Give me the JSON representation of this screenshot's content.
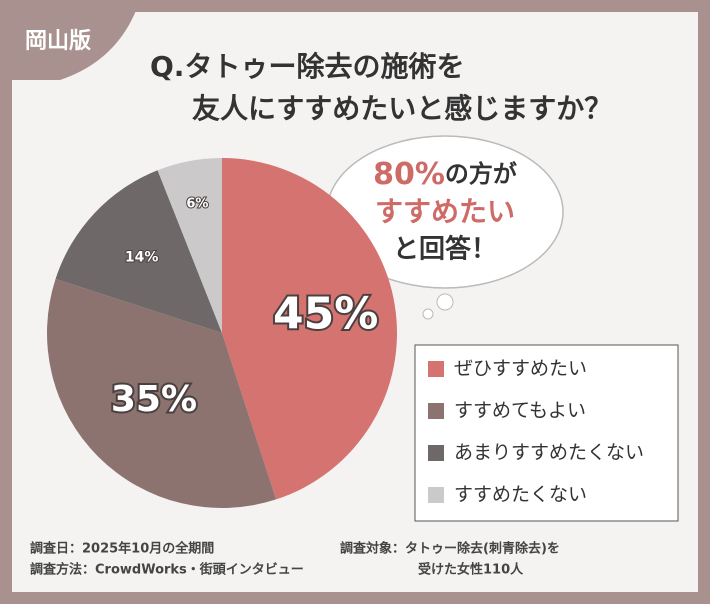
{
  "badge": "岡山版",
  "chart_data": {
    "type": "pie",
    "title_lines": [
      "Q.タトゥー除去の施術を",
      "友人にすすめたいと感じますか？"
    ],
    "categories": [
      "ぜひすすめたい",
      "すすめてもよい",
      "あまりすすめたくない",
      "すすめたくない"
    ],
    "values": [
      45,
      35,
      14,
      6
    ],
    "value_labels": [
      "45%",
      "35%",
      "14%",
      "6%"
    ],
    "colors": [
      "#d4736f",
      "#8c7370",
      "#6e6868",
      "#cbc9c9"
    ]
  },
  "callout": {
    "highlight": "80%",
    "line1_rest": "の方が",
    "line2": "すすめたい",
    "line3": "と回答！"
  },
  "footnotes": {
    "date": "調査日：2025年10月の全期間",
    "method": "調査方法：CrowdWorks・街頭インタビュー",
    "target_line1": "調査対象：タトゥー除去(刺青除去)を",
    "target_line2": "受けた女性110人"
  }
}
